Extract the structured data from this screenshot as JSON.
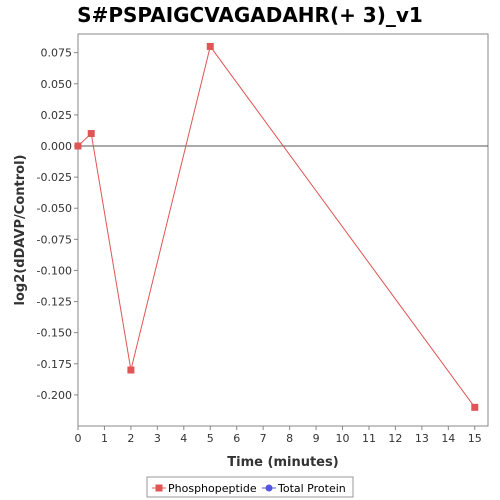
{
  "chart_data": {
    "type": "line",
    "title": "S#PSPAIGCVAGADAHR(+ 3)_v1",
    "xlabel": "Time (minutes)",
    "ylabel": "log2(dDAVP/Control)",
    "xlim": [
      0,
      15.5
    ],
    "ylim": [
      -0.225,
      0.09
    ],
    "x_ticks": [
      0,
      1,
      2,
      3,
      4,
      5,
      6,
      7,
      8,
      9,
      10,
      11,
      12,
      13,
      14,
      15
    ],
    "y_ticks": [
      0.075,
      0.05,
      0.025,
      0.0,
      -0.025,
      -0.05,
      -0.075,
      -0.1,
      -0.125,
      -0.15,
      -0.175,
      -0.2
    ],
    "y_tick_labels": [
      "0.075",
      "0.050",
      "0.025",
      "0.000",
      "-0.025",
      "-0.050",
      "-0.075",
      "-0.100",
      "-0.125",
      "-0.150",
      "-0.175",
      "-0.200"
    ],
    "grid": false,
    "zero_line": true,
    "legend_position": "bottom",
    "series": [
      {
        "name": "Phosphopeptide",
        "color": "#e05555",
        "marker": "square",
        "x": [
          0,
          0.5,
          2,
          5,
          15
        ],
        "y": [
          0.0,
          0.01,
          -0.18,
          0.08,
          -0.21
        ]
      },
      {
        "name": "Total Protein",
        "color": "#5555e0",
        "marker": "circle",
        "x": [],
        "y": []
      }
    ]
  }
}
